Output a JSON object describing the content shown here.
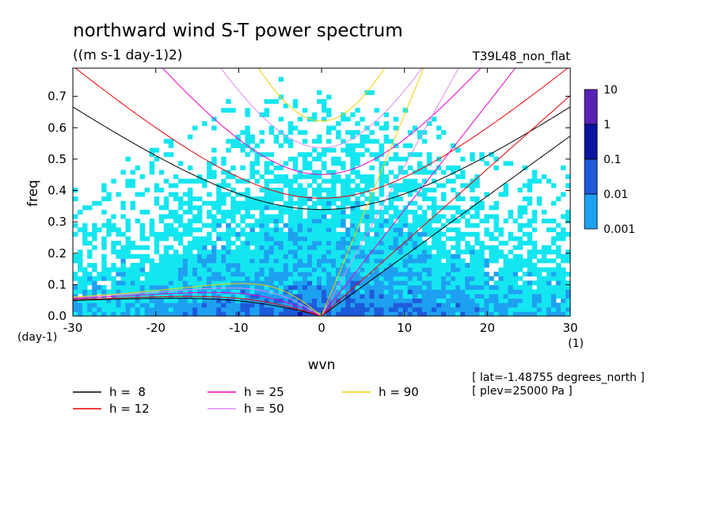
{
  "header": {
    "title": "northward wind S-T power spectrum",
    "subtitle": "((m s-1 day-1)2)",
    "run_label": "T39L48_non_flat"
  },
  "axes": {
    "x_label": "wvn",
    "y_label": "freq",
    "x_unit": "(1)",
    "y_unit": "(day-1)"
  },
  "info": {
    "lat": "[ lat=-1.48755 degrees_north ]",
    "plev": "[ plev=25000 Pa ]"
  },
  "colorbar": {
    "labels": [
      "10",
      "1",
      "0.1",
      "0.01",
      "0.001"
    ],
    "colors": [
      "#5a22b4",
      "#0a14a0",
      "#1e5adc",
      "#1ea0f0",
      "#14e6f0"
    ]
  },
  "legend": [
    {
      "label": "h =  8",
      "color": "#000000"
    },
    {
      "label": "h = 12",
      "color": "#e60000"
    },
    {
      "label": "h = 25",
      "color": "#e600c8"
    },
    {
      "label": "h = 50",
      "color": "#dc8cf0"
    },
    {
      "label": "h = 90",
      "color": "#f0d200"
    }
  ],
  "chart_data": {
    "type": "heatmap",
    "xlim": [
      -30,
      30
    ],
    "ylim": [
      0,
      0.79
    ],
    "x_ticks": [
      -30,
      -20,
      -10,
      0,
      10,
      20,
      30
    ],
    "y_ticks": [
      0.0,
      0.1,
      0.2,
      0.3,
      0.4,
      0.5,
      0.6,
      0.7
    ],
    "x_tick_labels": [
      "-30",
      "-20",
      "-10",
      "0",
      "10",
      "20",
      "30"
    ],
    "y_tick_labels": [
      "0.0",
      "0.1",
      "0.2",
      "0.3",
      "0.4",
      "0.5",
      "0.6",
      "0.7"
    ],
    "contour_levels": [
      0.001,
      0.01,
      0.1,
      1,
      10
    ],
    "dispersion_curves": [
      {
        "name": "h =  8",
        "color": "#000000",
        "equivalent_depth_m": 8
      },
      {
        "name": "h = 12",
        "color": "#e60000",
        "equivalent_depth_m": 12
      },
      {
        "name": "h = 25",
        "color": "#e600c8",
        "equivalent_depth_m": 25
      },
      {
        "name": "h = 50",
        "color": "#dc8cf0",
        "equivalent_depth_m": 50
      },
      {
        "name": "h = 90",
        "color": "#f0d200",
        "equivalent_depth_m": 90
      }
    ]
  }
}
